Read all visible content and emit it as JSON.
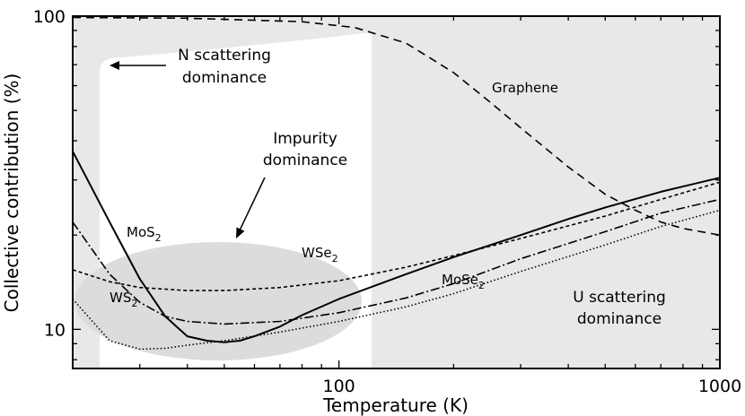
{
  "chart_data": {
    "type": "line",
    "xlabel": "Temperature (K)",
    "ylabel": "Collective contribution (%)",
    "x_scale": "log",
    "y_scale": "log",
    "xlim": [
      20,
      1000
    ],
    "ylim": [
      7.5,
      100
    ],
    "x_ticks": [
      {
        "value": 100,
        "label": "100"
      },
      {
        "value": 1000,
        "label": "1000"
      }
    ],
    "y_ticks": [
      {
        "value": 10,
        "label": "10"
      },
      {
        "value": 100,
        "label": "100"
      }
    ],
    "grid": false,
    "legend": "none",
    "regions": [
      {
        "name": "N scattering dominance",
        "color": "#e8e8e8"
      },
      {
        "name": "U scattering dominance",
        "color": "#e8e8e8"
      },
      {
        "name": "Impurity dominance",
        "color": "#dcdcdc"
      }
    ],
    "annotations": {
      "n_scattering": [
        "N scattering",
        "dominance"
      ],
      "impurity": [
        "Impurity",
        "dominance"
      ],
      "u_scattering": [
        "U scattering",
        "dominance"
      ]
    },
    "series": [
      {
        "name": "Graphene",
        "label_base": "Graphene",
        "label_sub": "",
        "dash": "9,6",
        "points": [
          [
            20,
            99
          ],
          [
            40,
            98.5
          ],
          [
            80,
            96
          ],
          [
            110,
            92
          ],
          [
            150,
            82
          ],
          [
            200,
            66
          ],
          [
            250,
            53
          ],
          [
            300,
            44
          ],
          [
            400,
            33
          ],
          [
            500,
            27
          ],
          [
            600,
            24
          ],
          [
            700,
            22
          ],
          [
            800,
            21
          ],
          [
            1000,
            20
          ]
        ]
      },
      {
        "name": "MoS2",
        "label_base": "MoS",
        "label_sub": "2",
        "dash": "",
        "points": [
          [
            20,
            37
          ],
          [
            25,
            22
          ],
          [
            30,
            14.5
          ],
          [
            35,
            11
          ],
          [
            40,
            9.5
          ],
          [
            45,
            9.2
          ],
          [
            50,
            9.1
          ],
          [
            55,
            9.2
          ],
          [
            60,
            9.5
          ],
          [
            70,
            10.2
          ],
          [
            80,
            11.1
          ],
          [
            100,
            12.5
          ],
          [
            150,
            15
          ],
          [
            200,
            17
          ],
          [
            300,
            20
          ],
          [
            400,
            22.5
          ],
          [
            500,
            24.5
          ],
          [
            700,
            27.5
          ],
          [
            1000,
            30.5
          ]
        ]
      },
      {
        "name": "WSe2",
        "label_base": "WSe",
        "label_sub": "2",
        "dash": "4,3",
        "points": [
          [
            20,
            15.5
          ],
          [
            25,
            14.2
          ],
          [
            30,
            13.6
          ],
          [
            40,
            13.3
          ],
          [
            50,
            13.3
          ],
          [
            70,
            13.6
          ],
          [
            100,
            14.3
          ],
          [
            150,
            15.8
          ],
          [
            200,
            17.2
          ],
          [
            300,
            19.5
          ],
          [
            500,
            23
          ],
          [
            700,
            26
          ],
          [
            1000,
            29.5
          ]
        ]
      },
      {
        "name": "WS2",
        "label_base": "WS",
        "label_sub": "2",
        "dash": "10,3,2,3",
        "points": [
          [
            20,
            22
          ],
          [
            25,
            15
          ],
          [
            30,
            12.2
          ],
          [
            35,
            11
          ],
          [
            40,
            10.6
          ],
          [
            50,
            10.4
          ],
          [
            70,
            10.6
          ],
          [
            100,
            11.3
          ],
          [
            150,
            12.6
          ],
          [
            200,
            14
          ],
          [
            300,
            16.8
          ],
          [
            500,
            20.5
          ],
          [
            700,
            23.5
          ],
          [
            1000,
            26
          ]
        ]
      },
      {
        "name": "MoSe2",
        "label_base": "MoSe",
        "label_sub": "2",
        "dash": "1.5,2.5",
        "points": [
          [
            20,
            12.5
          ],
          [
            25,
            9.2
          ],
          [
            30,
            8.65
          ],
          [
            35,
            8.7
          ],
          [
            40,
            8.9
          ],
          [
            50,
            9.2
          ],
          [
            70,
            9.8
          ],
          [
            100,
            10.6
          ],
          [
            150,
            11.8
          ],
          [
            200,
            13
          ],
          [
            300,
            15.3
          ],
          [
            500,
            18.6
          ],
          [
            700,
            21.3
          ],
          [
            1000,
            24
          ]
        ]
      }
    ]
  }
}
